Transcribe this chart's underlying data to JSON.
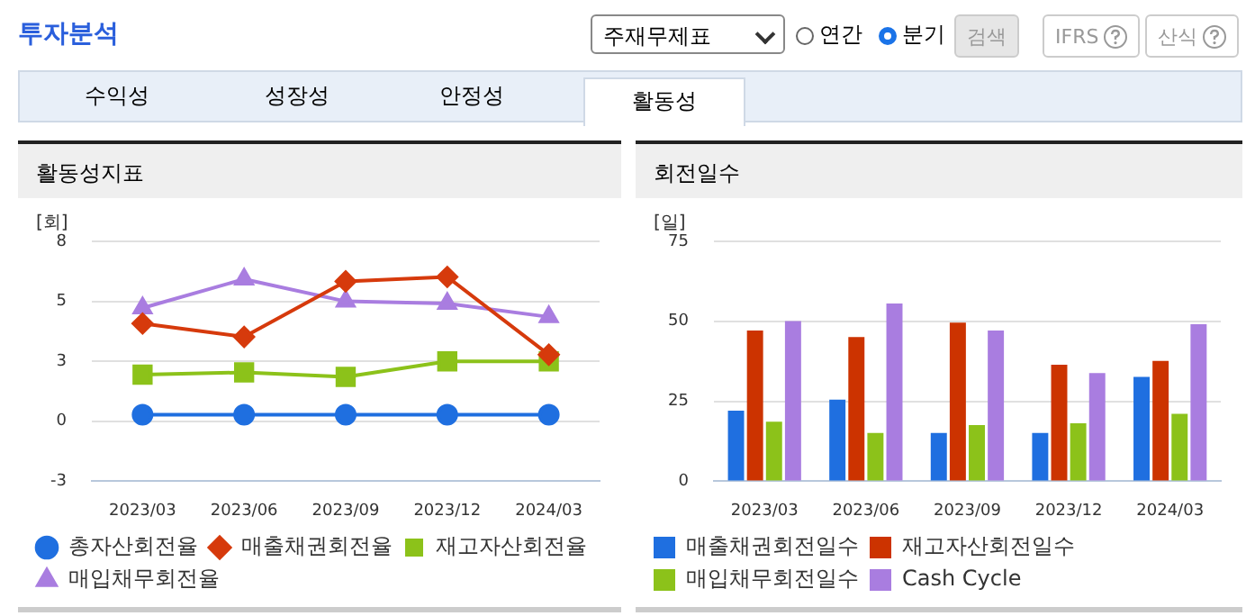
{
  "chart_data": [
    {
      "type": "other",
      "title": "투자분석",
      "annotations": [
        "주재무제표",
        "연간",
        "분기",
        "검색",
        "IFRS",
        "산식",
        "수익성",
        "성장성",
        "안정성",
        "활동성"
      ]
    },
    {
      "type": "line",
      "title": "활동성지표",
      "ylabel": "[회]",
      "categories": [
        "2023/03",
        "2023/06",
        "2023/09",
        "2023/12",
        "2024/03"
      ],
      "ylim": [
        -2.7,
        8.1
      ],
      "yticks": [
        {
          "value": -2.7,
          "label": "-3"
        },
        {
          "value": 0,
          "label": "0"
        },
        {
          "value": 2.7,
          "label": "3"
        },
        {
          "value": 5.4,
          "label": "5"
        },
        {
          "value": 8.1,
          "label": "8"
        }
      ],
      "grid": "y",
      "legend": "bottom",
      "series": [
        {
          "name": "총자산회전율",
          "color": "#1f6fe0",
          "marker": "circle",
          "values": [
            0.3,
            0.3,
            0.3,
            0.3,
            0.3
          ]
        },
        {
          "name": "매출채권회전율",
          "color": "#d63a0c",
          "marker": "diamond",
          "values": [
            4.4,
            3.8,
            6.3,
            6.5,
            3.0
          ]
        },
        {
          "name": "재고자산회전율",
          "color": "#8cc21a",
          "marker": "square",
          "values": [
            2.1,
            2.2,
            2.0,
            2.7,
            2.7
          ]
        },
        {
          "name": "매입채무회전율",
          "color": "#a97de0",
          "marker": "triangle",
          "values": [
            5.1,
            6.4,
            5.4,
            5.3,
            4.7
          ]
        }
      ]
    },
    {
      "type": "bar",
      "title": "회전일수",
      "ylabel": "[일]",
      "categories": [
        "2023/03",
        "2023/06",
        "2023/09",
        "2023/12",
        "2024/03"
      ],
      "ylim": [
        0,
        75
      ],
      "yticks": [
        0,
        25,
        50,
        75
      ],
      "grid": "y",
      "legend": "bottom",
      "series": [
        {
          "name": "매출채권회전일수",
          "color": "#1f6fe0",
          "values": [
            22.1,
            25.5,
            15.1,
            15.1,
            32.6
          ]
        },
        {
          "name": "재고자산회전일수",
          "color": "#cc3300",
          "values": [
            47.1,
            45.1,
            49.6,
            36.4,
            37.6
          ]
        },
        {
          "name": "매입채무회전일수",
          "color": "#8cc21a",
          "values": [
            18.6,
            15.1,
            17.6,
            18.1,
            21.1
          ]
        },
        {
          "name": "Cash Cycle",
          "color": "#a97de0",
          "values": [
            50.1,
            55.6,
            47.1,
            33.8,
            49.1
          ]
        }
      ]
    }
  ]
}
